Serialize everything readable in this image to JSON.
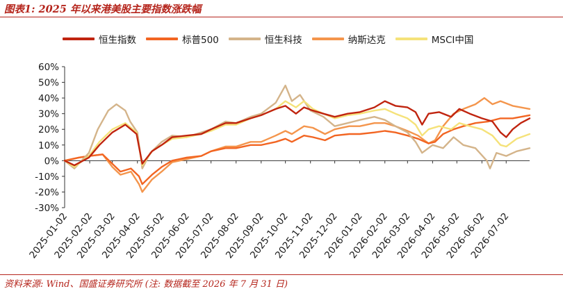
{
  "figure": {
    "title": "图表1: 2025 年以来港美股主要指数涨跌幅",
    "source": "资料来源: Wind、国盛证券研究所 (注: 数据截至 2026 年 7 月 31 日)"
  },
  "chart_data": {
    "type": "line",
    "title": "",
    "xlabel": "",
    "ylabel": "",
    "x_ticks": [
      "2025-01-02",
      "2025-02-02",
      "2025-03-02",
      "2025-04-02",
      "2025-05-02",
      "2025-06-02",
      "2025-07-02",
      "2025-08-02",
      "2025-09-02",
      "2025-10-02",
      "2025-11-02",
      "2025-12-02",
      "2026-01-02",
      "2026-02-02",
      "2026-03-02",
      "2026-04-02",
      "2026-05-02",
      "2026-06-02",
      "2026-07-02"
    ],
    "y_ticks": [
      "60%",
      "50%",
      "40%",
      "30%",
      "20%",
      "10%",
      "0%",
      "-10%",
      "-20%",
      "-30%"
    ],
    "ylim": [
      -30,
      60
    ],
    "xlim": [
      "2025-01-02",
      "2026-07-31"
    ],
    "grid": false,
    "legend_position": "top",
    "series": [
      {
        "name": "恒生指数",
        "color": "#c0240f",
        "points": [
          [
            "2025-01-02",
            0
          ],
          [
            "2025-01-14",
            -3
          ],
          [
            "2025-02-01",
            2
          ],
          [
            "2025-02-14",
            10
          ],
          [
            "2025-03-02",
            18
          ],
          [
            "2025-03-18",
            23
          ],
          [
            "2025-04-01",
            17
          ],
          [
            "2025-04-08",
            -2
          ],
          [
            "2025-04-20",
            6
          ],
          [
            "2025-05-02",
            10
          ],
          [
            "2025-05-15",
            15
          ],
          [
            "2025-06-02",
            16
          ],
          [
            "2025-06-20",
            17
          ],
          [
            "2025-07-02",
            20
          ],
          [
            "2025-07-20",
            24
          ],
          [
            "2025-08-02",
            24
          ],
          [
            "2025-08-20",
            27
          ],
          [
            "2025-09-02",
            29
          ],
          [
            "2025-09-20",
            33
          ],
          [
            "2025-10-02",
            35
          ],
          [
            "2025-10-15",
            30
          ],
          [
            "2025-10-25",
            34
          ],
          [
            "2025-11-05",
            32
          ],
          [
            "2025-11-18",
            30
          ],
          [
            "2025-12-02",
            28
          ],
          [
            "2025-12-18",
            30
          ],
          [
            "2026-01-02",
            31
          ],
          [
            "2026-01-20",
            34
          ],
          [
            "2026-02-02",
            38
          ],
          [
            "2026-02-15",
            35
          ],
          [
            "2026-03-02",
            34
          ],
          [
            "2026-03-12",
            31
          ],
          [
            "2026-03-20",
            23
          ],
          [
            "2026-03-28",
            30
          ],
          [
            "2026-04-10",
            31
          ],
          [
            "2026-04-25",
            28
          ],
          [
            "2026-05-05",
            33
          ],
          [
            "2026-05-18",
            30
          ],
          [
            "2026-06-02",
            27
          ],
          [
            "2026-06-15",
            25
          ],
          [
            "2026-06-25",
            18
          ],
          [
            "2026-07-02",
            15
          ],
          [
            "2026-07-10",
            20
          ],
          [
            "2026-07-20",
            24
          ],
          [
            "2026-07-31",
            27
          ]
        ]
      },
      {
        "name": "标普500",
        "color": "#f26522",
        "points": [
          [
            "2025-01-02",
            0
          ],
          [
            "2025-01-20",
            2
          ],
          [
            "2025-02-02",
            3
          ],
          [
            "2025-02-18",
            4
          ],
          [
            "2025-03-02",
            -2
          ],
          [
            "2025-03-12",
            -7
          ],
          [
            "2025-03-25",
            -5
          ],
          [
            "2025-04-04",
            -10
          ],
          [
            "2025-04-08",
            -15
          ],
          [
            "2025-04-20",
            -9
          ],
          [
            "2025-05-02",
            -4
          ],
          [
            "2025-05-15",
            0
          ],
          [
            "2025-06-02",
            2
          ],
          [
            "2025-06-20",
            3
          ],
          [
            "2025-07-02",
            6
          ],
          [
            "2025-07-20",
            8
          ],
          [
            "2025-08-02",
            8
          ],
          [
            "2025-08-20",
            10
          ],
          [
            "2025-09-02",
            10
          ],
          [
            "2025-09-20",
            12
          ],
          [
            "2025-10-02",
            14
          ],
          [
            "2025-10-10",
            12
          ],
          [
            "2025-10-25",
            16
          ],
          [
            "2025-11-05",
            15
          ],
          [
            "2025-11-20",
            13
          ],
          [
            "2025-12-02",
            16
          ],
          [
            "2025-12-20",
            17
          ],
          [
            "2026-01-02",
            17
          ],
          [
            "2026-01-20",
            18
          ],
          [
            "2026-02-02",
            19
          ],
          [
            "2026-02-15",
            18
          ],
          [
            "2026-03-02",
            16
          ],
          [
            "2026-03-15",
            14
          ],
          [
            "2026-03-28",
            11
          ],
          [
            "2026-04-05",
            12
          ],
          [
            "2026-04-15",
            17
          ],
          [
            "2026-04-28",
            20
          ],
          [
            "2026-05-10",
            22
          ],
          [
            "2026-05-25",
            24
          ],
          [
            "2026-06-10",
            25
          ],
          [
            "2026-06-25",
            27
          ],
          [
            "2026-07-10",
            27
          ],
          [
            "2026-07-31",
            29
          ]
        ]
      },
      {
        "name": "恒生科技",
        "color": "#d4b48a",
        "points": [
          [
            "2025-01-02",
            0
          ],
          [
            "2025-01-14",
            -5
          ],
          [
            "2025-02-01",
            5
          ],
          [
            "2025-02-12",
            20
          ],
          [
            "2025-02-25",
            32
          ],
          [
            "2025-03-07",
            36
          ],
          [
            "2025-03-18",
            32
          ],
          [
            "2025-03-24",
            25
          ],
          [
            "2025-04-02",
            18
          ],
          [
            "2025-04-08",
            -5
          ],
          [
            "2025-04-18",
            5
          ],
          [
            "2025-05-02",
            12
          ],
          [
            "2025-05-15",
            16
          ],
          [
            "2025-06-02",
            15
          ],
          [
            "2025-06-20",
            18
          ],
          [
            "2025-07-02",
            20
          ],
          [
            "2025-07-20",
            25
          ],
          [
            "2025-08-02",
            24
          ],
          [
            "2025-08-20",
            28
          ],
          [
            "2025-09-02",
            30
          ],
          [
            "2025-09-20",
            37
          ],
          [
            "2025-10-02",
            48
          ],
          [
            "2025-10-10",
            38
          ],
          [
            "2025-10-20",
            42
          ],
          [
            "2025-11-02",
            32
          ],
          [
            "2025-11-18",
            28
          ],
          [
            "2025-12-02",
            22
          ],
          [
            "2025-12-18",
            24
          ],
          [
            "2026-01-02",
            26
          ],
          [
            "2026-01-20",
            28
          ],
          [
            "2026-02-02",
            26
          ],
          [
            "2026-02-15",
            22
          ],
          [
            "2026-03-02",
            18
          ],
          [
            "2026-03-12",
            12
          ],
          [
            "2026-03-20",
            5
          ],
          [
            "2026-04-02",
            10
          ],
          [
            "2026-04-15",
            8
          ],
          [
            "2026-04-28",
            15
          ],
          [
            "2026-05-10",
            10
          ],
          [
            "2026-05-25",
            8
          ],
          [
            "2026-06-08",
            0
          ],
          [
            "2026-06-12",
            -5
          ],
          [
            "2026-06-20",
            5
          ],
          [
            "2026-07-02",
            3
          ],
          [
            "2026-07-15",
            6
          ],
          [
            "2026-07-31",
            8
          ]
        ]
      },
      {
        "name": "纳斯达克",
        "color": "#f4954c",
        "points": [
          [
            "2025-01-02",
            0
          ],
          [
            "2025-01-20",
            2
          ],
          [
            "2025-02-02",
            3
          ],
          [
            "2025-02-18",
            4
          ],
          [
            "2025-03-02",
            -4
          ],
          [
            "2025-03-12",
            -9
          ],
          [
            "2025-03-25",
            -7
          ],
          [
            "2025-04-04",
            -15
          ],
          [
            "2025-04-08",
            -20
          ],
          [
            "2025-04-20",
            -12
          ],
          [
            "2025-05-02",
            -7
          ],
          [
            "2025-05-15",
            -1
          ],
          [
            "2025-06-02",
            1
          ],
          [
            "2025-06-20",
            3
          ],
          [
            "2025-07-02",
            6
          ],
          [
            "2025-07-20",
            9
          ],
          [
            "2025-08-02",
            9
          ],
          [
            "2025-08-20",
            12
          ],
          [
            "2025-09-02",
            12
          ],
          [
            "2025-09-20",
            16
          ],
          [
            "2025-10-02",
            19
          ],
          [
            "2025-10-10",
            17
          ],
          [
            "2025-10-25",
            22
          ],
          [
            "2025-11-05",
            21
          ],
          [
            "2025-11-20",
            17
          ],
          [
            "2025-12-02",
            20
          ],
          [
            "2025-12-20",
            22
          ],
          [
            "2026-01-02",
            22
          ],
          [
            "2026-01-20",
            24
          ],
          [
            "2026-02-02",
            24
          ],
          [
            "2026-02-15",
            22
          ],
          [
            "2026-03-02",
            19
          ],
          [
            "2026-03-15",
            16
          ],
          [
            "2026-03-28",
            11
          ],
          [
            "2026-04-05",
            13
          ],
          [
            "2026-04-15",
            22
          ],
          [
            "2026-04-28",
            30
          ],
          [
            "2026-05-10",
            33
          ],
          [
            "2026-05-25",
            36
          ],
          [
            "2026-06-05",
            40
          ],
          [
            "2026-06-15",
            36
          ],
          [
            "2026-06-25",
            38
          ],
          [
            "2026-07-10",
            35
          ],
          [
            "2026-07-31",
            33
          ]
        ]
      },
      {
        "name": "MSCI中国",
        "color": "#f5e27a",
        "points": [
          [
            "2025-01-02",
            0
          ],
          [
            "2025-01-14",
            -4
          ],
          [
            "2025-02-01",
            3
          ],
          [
            "2025-02-14",
            12
          ],
          [
            "2025-03-02",
            20
          ],
          [
            "2025-03-18",
            24
          ],
          [
            "2025-04-01",
            18
          ],
          [
            "2025-04-08",
            -3
          ],
          [
            "2025-04-20",
            6
          ],
          [
            "2025-05-02",
            10
          ],
          [
            "2025-05-15",
            14
          ],
          [
            "2025-06-02",
            15
          ],
          [
            "2025-06-20",
            17
          ],
          [
            "2025-07-02",
            19
          ],
          [
            "2025-07-20",
            23
          ],
          [
            "2025-08-02",
            23
          ],
          [
            "2025-08-20",
            27
          ],
          [
            "2025-09-02",
            29
          ],
          [
            "2025-09-20",
            33
          ],
          [
            "2025-10-02",
            38
          ],
          [
            "2025-10-15",
            34
          ],
          [
            "2025-10-25",
            38
          ],
          [
            "2025-11-05",
            33
          ],
          [
            "2025-11-18",
            30
          ],
          [
            "2025-12-02",
            27
          ],
          [
            "2025-12-18",
            29
          ],
          [
            "2026-01-02",
            30
          ],
          [
            "2026-01-20",
            32
          ],
          [
            "2026-02-02",
            33
          ],
          [
            "2026-02-15",
            30
          ],
          [
            "2026-03-02",
            27
          ],
          [
            "2026-03-12",
            23
          ],
          [
            "2026-03-20",
            16
          ],
          [
            "2026-03-28",
            20
          ],
          [
            "2026-04-10",
            22
          ],
          [
            "2026-04-25",
            20
          ],
          [
            "2026-05-05",
            24
          ],
          [
            "2026-05-18",
            22
          ],
          [
            "2026-06-02",
            20
          ],
          [
            "2026-06-15",
            16
          ],
          [
            "2026-06-25",
            10
          ],
          [
            "2026-07-02",
            9
          ],
          [
            "2026-07-15",
            14
          ],
          [
            "2026-07-31",
            17
          ]
        ]
      }
    ]
  }
}
